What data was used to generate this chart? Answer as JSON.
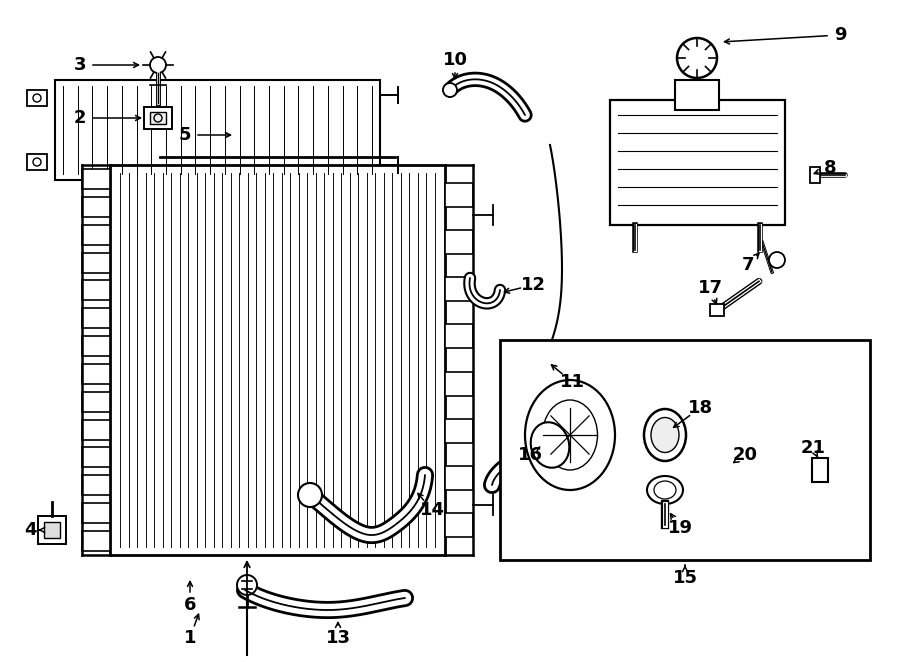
{
  "title": "",
  "bg_color": "#ffffff",
  "fig_width": 9.0,
  "fig_height": 6.62,
  "dpi": 100,
  "lw": 1.2
}
